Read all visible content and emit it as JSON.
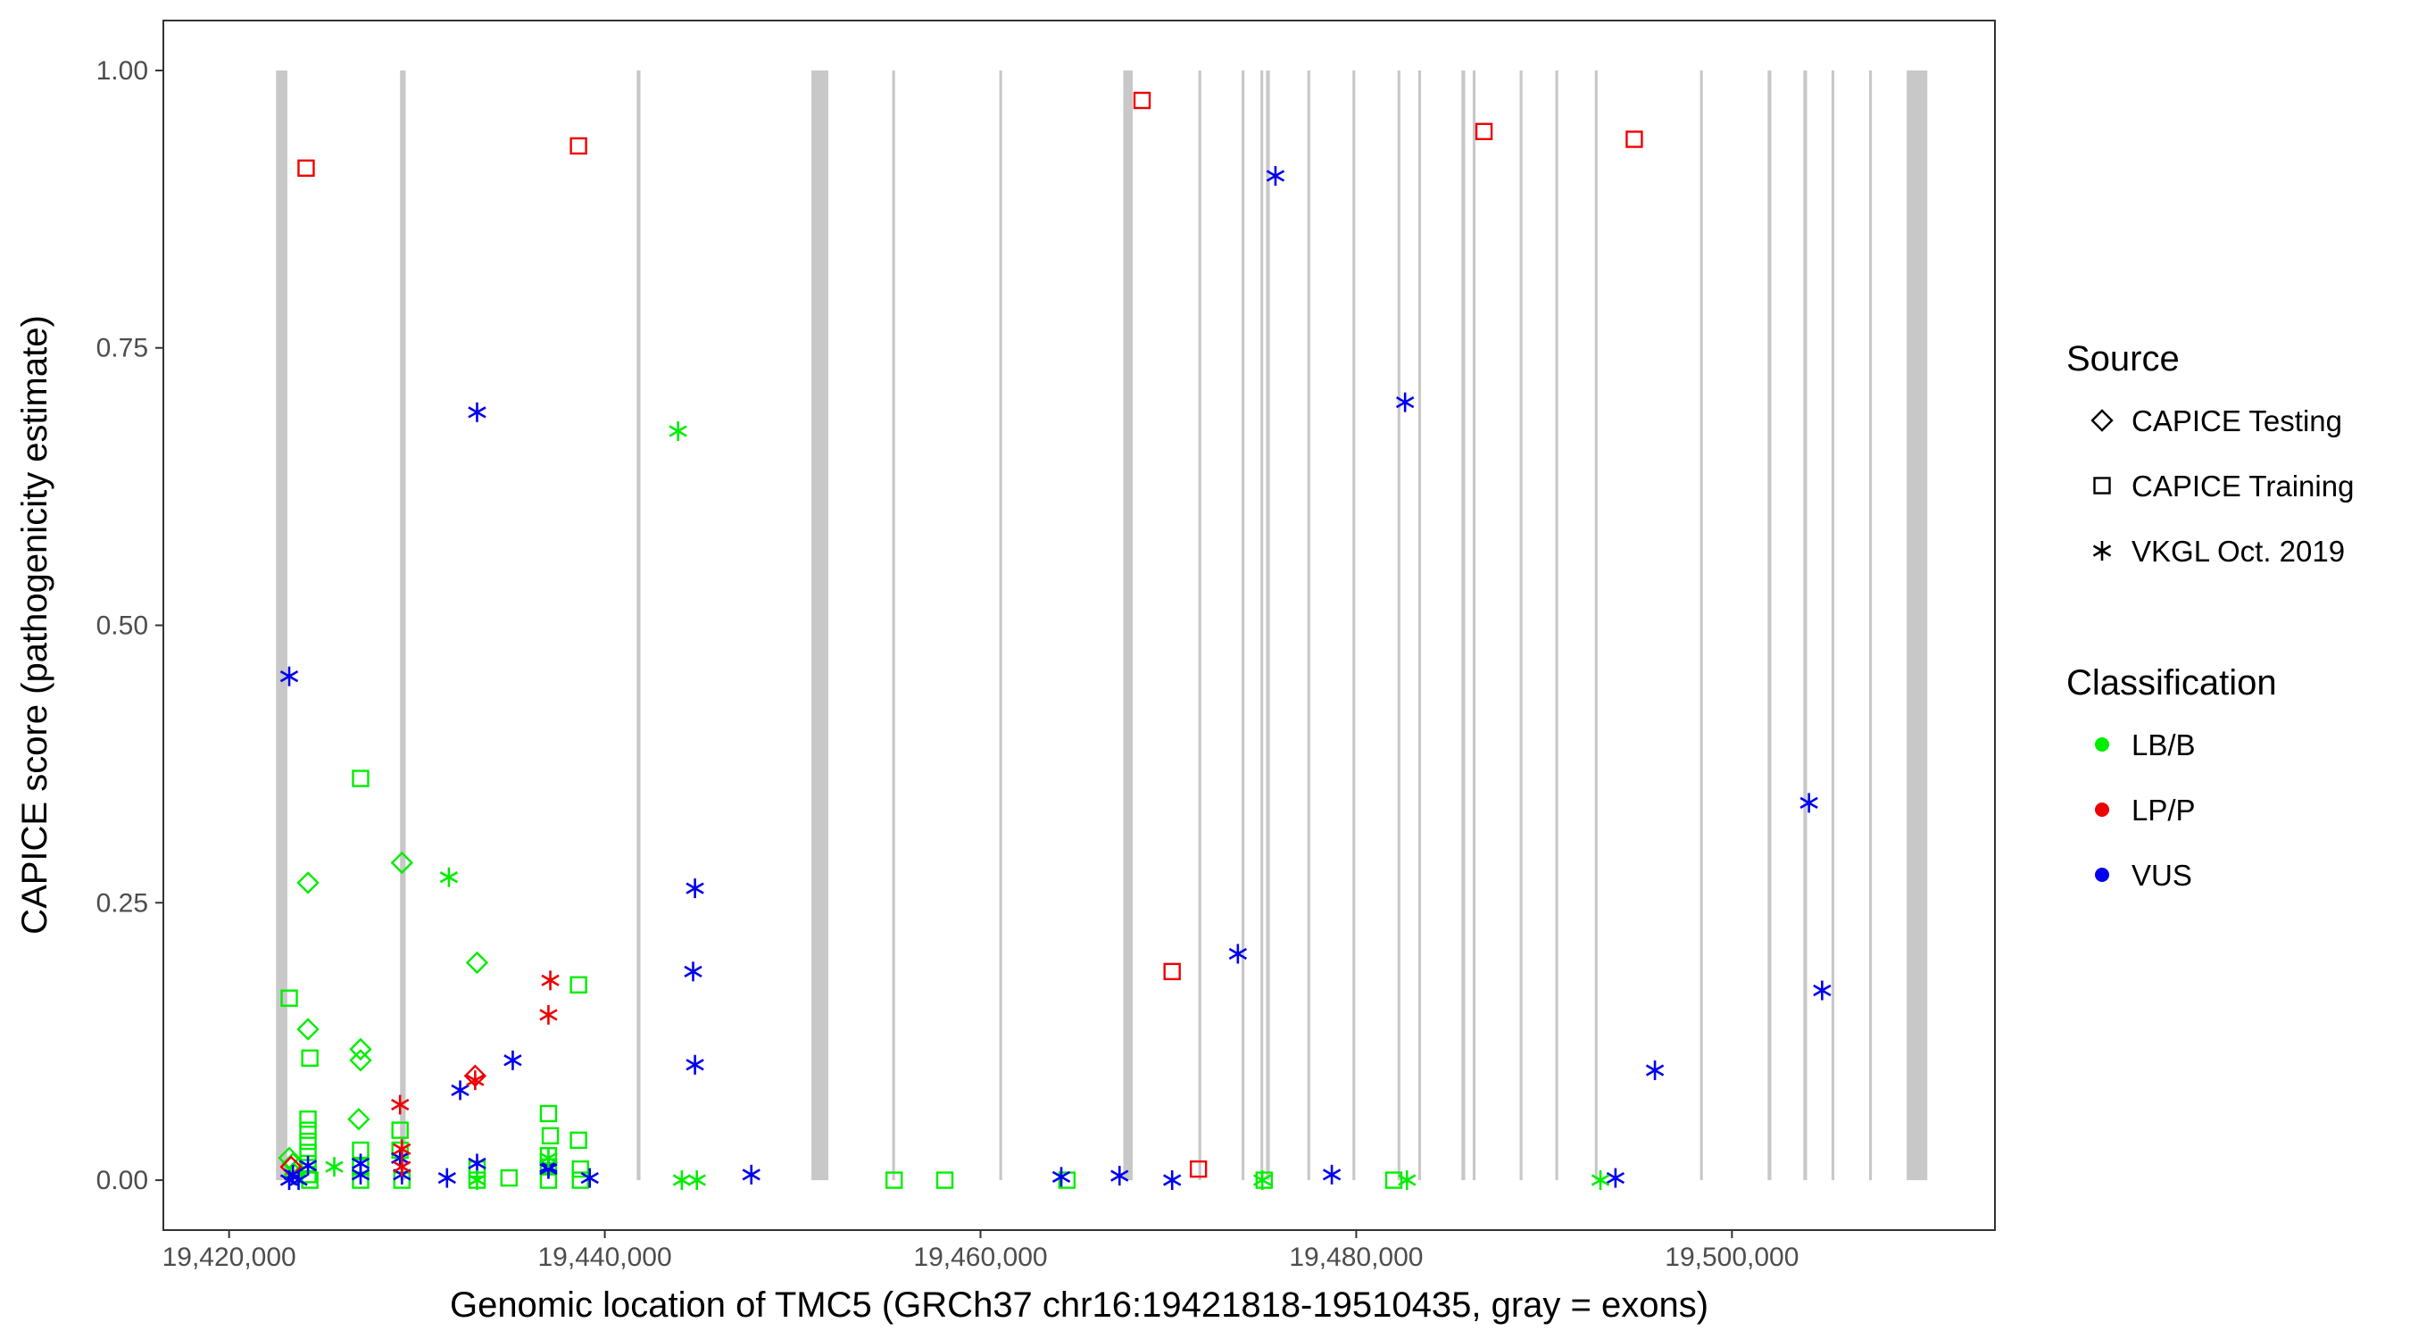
{
  "chart_data": {
    "type": "scatter",
    "xlabel": "Genomic location of TMC5 (GRCh37 chr16:19421818-19510435, gray = exons)",
    "ylabel": "CAPICE score (pathogenicity estimate)",
    "xlim": [
      19416500,
      19514000
    ],
    "ylim": [
      -0.045,
      1.045
    ],
    "x_ticks": [
      19420000,
      19440000,
      19460000,
      19480000,
      19500000
    ],
    "x_tick_labels": [
      "19,420,000",
      "19,440,000",
      "19,460,000",
      "19,480,000",
      "19,500,000"
    ],
    "y_ticks": [
      0,
      0.25,
      0.5,
      0.75,
      1.0
    ],
    "y_tick_labels": [
      "0.00",
      "0.25",
      "0.50",
      "0.75",
      "1.00"
    ],
    "grid": false,
    "exons": [
      [
        19422500,
        19423100
      ],
      [
        19429100,
        19429400
      ],
      [
        19441700,
        19441900
      ],
      [
        19451000,
        19451900
      ],
      [
        19455300,
        19455450
      ],
      [
        19461000,
        19461150
      ],
      [
        19467600,
        19468100
      ],
      [
        19471600,
        19471750
      ],
      [
        19473900,
        19474050
      ],
      [
        19474900,
        19475050
      ],
      [
        19475200,
        19475400
      ],
      [
        19477400,
        19477550
      ],
      [
        19479800,
        19479950
      ],
      [
        19482200,
        19482350
      ],
      [
        19483300,
        19483450
      ],
      [
        19485600,
        19485800
      ],
      [
        19486200,
        19486350
      ],
      [
        19488700,
        19488850
      ],
      [
        19490600,
        19490750
      ],
      [
        19492700,
        19492850
      ],
      [
        19498300,
        19498450
      ],
      [
        19501900,
        19502100
      ],
      [
        19503800,
        19504000
      ],
      [
        19505300,
        19505450
      ],
      [
        19507300,
        19507450
      ],
      [
        19509300,
        19510400
      ]
    ],
    "legend": {
      "position": "right",
      "source_title": "Source",
      "source_entries": [
        "CAPICE Testing",
        "CAPICE Training",
        "VKGL Oct. 2019"
      ],
      "class_title": "Classification",
      "class_entries": [
        "LB/B",
        "LP/P",
        "VUS"
      ],
      "class_colors": {
        "LB/B": "#00ee00",
        "LP/P": "#ee0000",
        "VUS": "#0000ee"
      }
    },
    "series": [
      {
        "source": "CAPICE Training",
        "class": "LP/P",
        "points": [
          [
            19424100,
            0.912
          ],
          [
            19438600,
            0.932
          ],
          [
            19468600,
            0.973
          ],
          [
            19486800,
            0.945
          ],
          [
            19494800,
            0.938
          ],
          [
            19470200,
            0.188
          ],
          [
            19471600,
            0.01
          ]
        ]
      },
      {
        "source": "CAPICE Training",
        "class": "LB/B",
        "points": [
          [
            19427000,
            0.362
          ],
          [
            19423200,
            0.164
          ],
          [
            19424300,
            0.11
          ],
          [
            19438600,
            0.176
          ],
          [
            19437000,
            0.06
          ],
          [
            19437100,
            0.04
          ],
          [
            19438600,
            0.036
          ],
          [
            19424200,
            0.055
          ],
          [
            19424200,
            0.045
          ],
          [
            19424200,
            0.035
          ],
          [
            19424200,
            0.025
          ],
          [
            19424200,
            0.015
          ],
          [
            19424200,
            0.005
          ],
          [
            19424300,
            0.0
          ],
          [
            19427000,
            0.027
          ],
          [
            19427000,
            0.012
          ],
          [
            19427000,
            0.0
          ],
          [
            19429100,
            0.045
          ],
          [
            19429100,
            0.027
          ],
          [
            19429200,
            0.0
          ],
          [
            19433200,
            0.01
          ],
          [
            19433200,
            0.0
          ],
          [
            19434900,
            0.002
          ],
          [
            19437000,
            0.022
          ],
          [
            19437000,
            0.012
          ],
          [
            19437000,
            0.0
          ],
          [
            19438700,
            0.01
          ],
          [
            19438700,
            0.0
          ],
          [
            19455400,
            0.0
          ],
          [
            19458100,
            0.0
          ],
          [
            19464600,
            0.0
          ],
          [
            19475100,
            0.0
          ],
          [
            19482000,
            0.0
          ]
        ]
      },
      {
        "source": "CAPICE Testing",
        "class": "LB/B",
        "points": [
          [
            19429200,
            0.286
          ],
          [
            19424200,
            0.268
          ],
          [
            19433200,
            0.196
          ],
          [
            19424200,
            0.136
          ],
          [
            19427000,
            0.118
          ],
          [
            19427000,
            0.108
          ],
          [
            19426900,
            0.055
          ],
          [
            19423200,
            0.02
          ],
          [
            19423400,
            0.015
          ],
          [
            19423500,
            0.005
          ]
        ]
      },
      {
        "source": "CAPICE Testing",
        "class": "LP/P",
        "points": [
          [
            19433100,
            0.094
          ],
          [
            19423300,
            0.012
          ]
        ]
      },
      {
        "source": "VKGL Oct. 2019",
        "class": "VUS",
        "points": [
          [
            19475700,
            0.905
          ],
          [
            19433200,
            0.692
          ],
          [
            19482600,
            0.701
          ],
          [
            19423200,
            0.454
          ],
          [
            19504100,
            0.34
          ],
          [
            19444800,
            0.263
          ],
          [
            19444700,
            0.188
          ],
          [
            19473700,
            0.204
          ],
          [
            19504800,
            0.171
          ],
          [
            19435100,
            0.108
          ],
          [
            19444800,
            0.104
          ],
          [
            19495900,
            0.099
          ],
          [
            19432300,
            0.081
          ],
          [
            19447800,
            0.005
          ],
          [
            19464300,
            0.003
          ],
          [
            19467400,
            0.004
          ],
          [
            19470200,
            0.0
          ],
          [
            19478700,
            0.005
          ],
          [
            19493800,
            0.002
          ],
          [
            19437000,
            0.012
          ],
          [
            19433200,
            0.015
          ],
          [
            19429100,
            0.02
          ],
          [
            19427000,
            0.015
          ],
          [
            19424200,
            0.013
          ],
          [
            19423400,
            0.005
          ],
          [
            19423200,
            0.0
          ],
          [
            19423700,
            0.0
          ],
          [
            19427000,
            0.005
          ],
          [
            19429200,
            0.005
          ],
          [
            19431600,
            0.002
          ],
          [
            19437000,
            0.01
          ],
          [
            19439200,
            0.002
          ]
        ]
      },
      {
        "source": "VKGL Oct. 2019",
        "class": "LB/B",
        "points": [
          [
            19443900,
            0.675
          ],
          [
            19431700,
            0.273
          ],
          [
            19425600,
            0.012
          ],
          [
            19433200,
            0.0
          ],
          [
            19437000,
            0.02
          ],
          [
            19444100,
            0.0
          ],
          [
            19444900,
            0.0
          ],
          [
            19475000,
            0.0
          ],
          [
            19482700,
            0.0
          ],
          [
            19493000,
            0.0
          ]
        ]
      },
      {
        "source": "VKGL Oct. 2019",
        "class": "LP/P",
        "points": [
          [
            19437100,
            0.18
          ],
          [
            19437000,
            0.149
          ],
          [
            19433100,
            0.09
          ],
          [
            19429100,
            0.068
          ],
          [
            19429200,
            0.028
          ],
          [
            19429200,
            0.012
          ]
        ]
      }
    ]
  }
}
